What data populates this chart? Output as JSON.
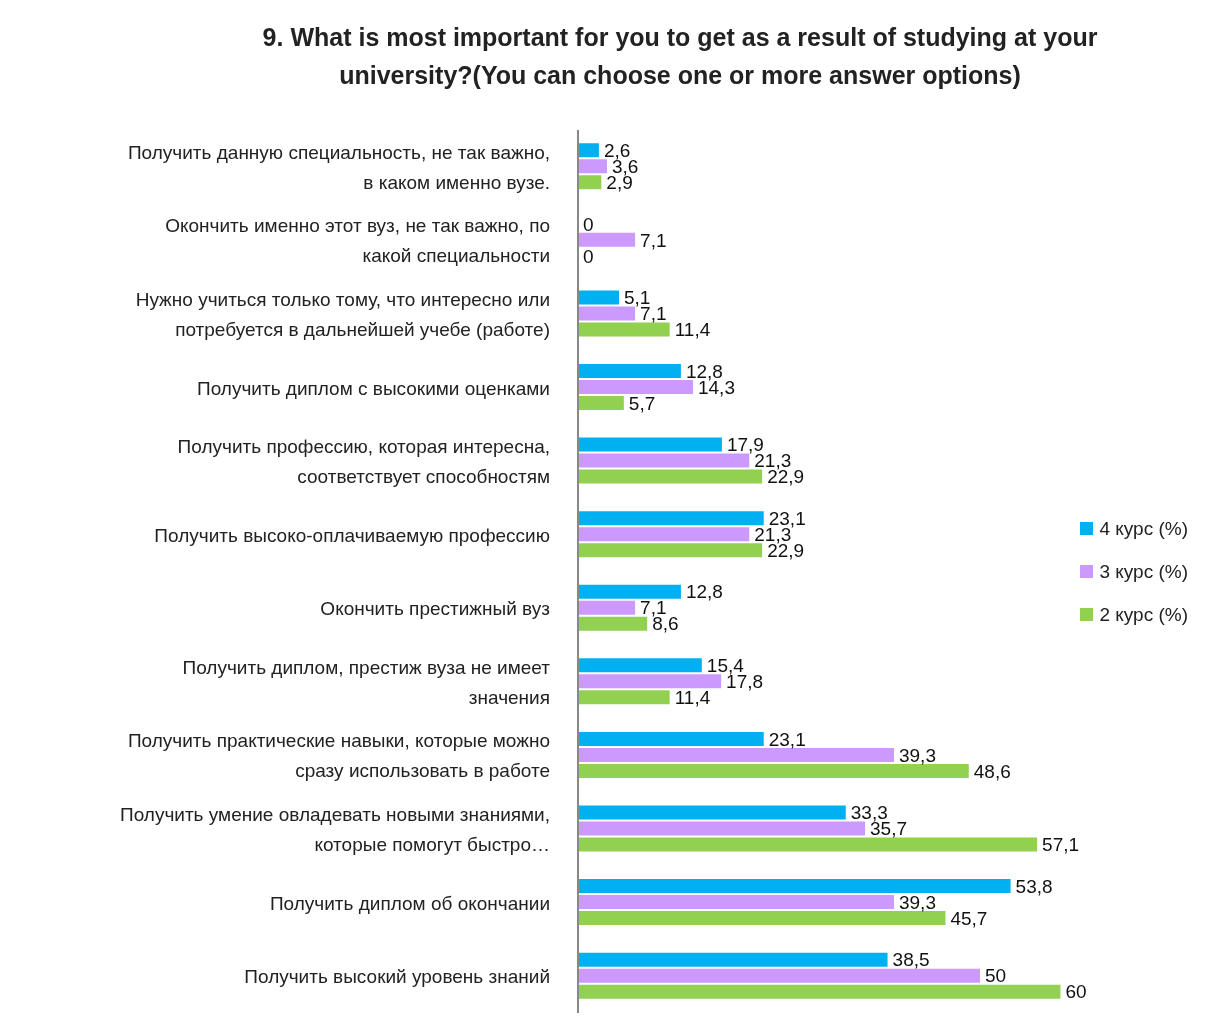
{
  "chart_data": {
    "type": "bar",
    "orientation": "horizontal",
    "title": "9. What is most important for you to get as a result of studying at your university?(You can choose one or more answer options)",
    "categories": [
      "Получить данную специальность, не так важно, в каком именно вузе.",
      "Окончить именно этот вуз, не так важно, по какой специальности",
      "Нужно учиться только тому, что интересно или потребуется в дальнейшей учебе (работе)",
      "Получить диплом с высокими оценками",
      "Получить профессию, которая интересна, соответствует способностям",
      "Получить высоко-оплачиваемую профессию",
      "Окончить престижный вуз",
      "Получить диплом, престиж вуза не имеет значения",
      "Получить практические навыки, которые можно сразу использовать в работе",
      "Получить умение овладевать новыми знаниями, которые помогут быстро…",
      "Получить диплом об окончании",
      "Получить высокий уровень знаний"
    ],
    "series": [
      {
        "name": "4 курс (%)",
        "color": "#00b0f0",
        "values": [
          2.6,
          0,
          5.1,
          12.8,
          17.9,
          23.1,
          12.8,
          15.4,
          23.1,
          33.3,
          53.8,
          38.5
        ],
        "value_labels": [
          "2,6",
          "0",
          "5,1",
          "12,8",
          "17,9",
          "23,1",
          "12,8",
          "15,4",
          "23,1",
          "33,3",
          "53,8",
          "38,5"
        ]
      },
      {
        "name": "3 курс (%)",
        "color": "#cc99ff",
        "values": [
          3.6,
          7.1,
          7.1,
          14.3,
          21.3,
          21.3,
          7.1,
          17.8,
          39.3,
          35.7,
          39.3,
          50
        ],
        "value_labels": [
          "3,6",
          "7,1",
          "7,1",
          "14,3",
          "21,3",
          "21,3",
          "7,1",
          "17,8",
          "39,3",
          "35,7",
          "39,3",
          "50"
        ]
      },
      {
        "name": "2 курс (%)",
        "color": "#92d050",
        "values": [
          2.9,
          0,
          11.4,
          5.7,
          22.9,
          22.9,
          8.6,
          11.4,
          48.6,
          57.1,
          45.7,
          60
        ],
        "value_labels": [
          "2,9",
          "0",
          "11,4",
          "5,7",
          "22,9",
          "22,9",
          "8,6",
          "11,4",
          "48,6",
          "57,1",
          "45,7",
          "60"
        ]
      }
    ],
    "legend": "right"
  }
}
